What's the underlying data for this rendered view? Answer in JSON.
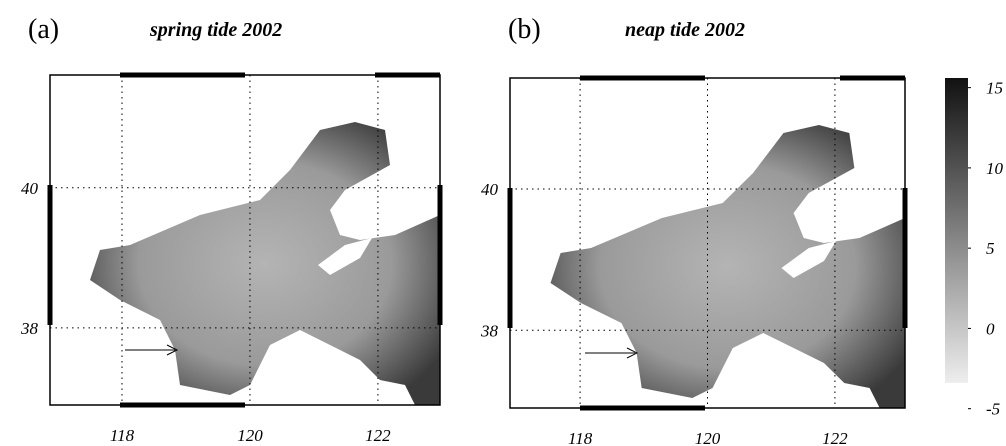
{
  "panels": [
    {
      "label": "(a)",
      "title": "spring tide 2002",
      "xlim": [
        116.875,
        122.97
      ],
      "ylim": [
        36.9,
        41.61
      ],
      "xticks": [
        118,
        120,
        122
      ],
      "yticks": [
        38,
        40
      ]
    },
    {
      "label": "(b)",
      "title": "neap tide 2002",
      "xlim": [
        116.9,
        123.1
      ],
      "ylim": [
        36.9,
        41.57
      ],
      "xticks": [
        118,
        120,
        122
      ],
      "yticks": [
        38,
        40
      ]
    }
  ],
  "colorbar": {
    "lim": [
      -3.4,
      15.6
    ],
    "ticks": [
      15,
      10,
      5,
      0,
      -5
    ]
  }
}
